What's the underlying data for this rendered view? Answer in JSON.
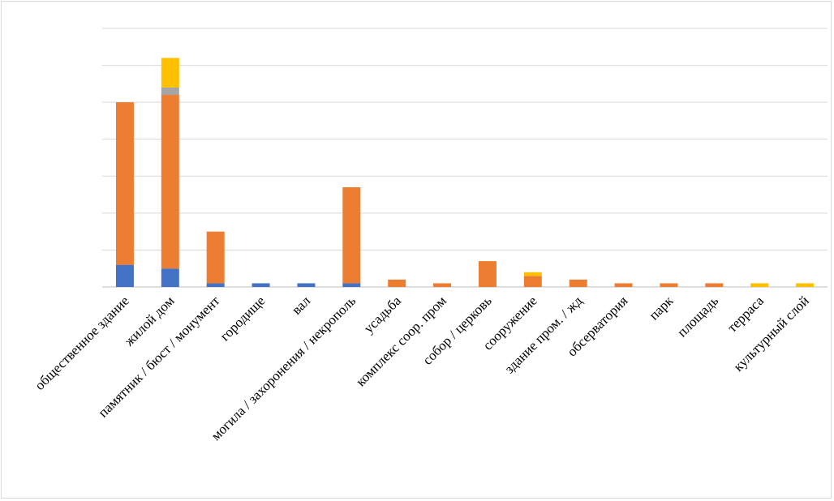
{
  "chart_data": {
    "type": "bar",
    "stacked": true,
    "categories": [
      "общественное здание",
      "жилой дом",
      "памятник / бюст / монумент",
      "городище",
      "вал",
      "могила / захоронения / некрополь",
      "усадьба",
      "комплекс соор. пром",
      "собор / церковь",
      "сооружение",
      "здание пром. / жд",
      "обсерватория",
      "парк",
      "площадь",
      "терраса",
      "культурный слой"
    ],
    "series": [
      {
        "color": "#4472c4",
        "values": [
          6,
          5,
          1,
          1,
          1,
          1,
          0,
          0,
          0,
          0,
          0,
          0,
          0,
          0,
          0,
          0
        ]
      },
      {
        "color": "#ed7d31",
        "values": [
          44,
          47,
          14,
          0,
          0,
          26,
          2,
          1,
          7,
          3,
          2,
          1,
          1,
          1,
          0,
          0
        ]
      },
      {
        "color": "#a5a5a5",
        "values": [
          0,
          2,
          0,
          0,
          0,
          0,
          0,
          0,
          0,
          0,
          0,
          0,
          0,
          0,
          0,
          0
        ]
      },
      {
        "color": "#ffc000",
        "values": [
          0,
          8,
          0,
          0,
          0,
          0,
          0,
          0,
          0,
          1,
          0,
          0,
          0,
          0,
          1,
          1
        ]
      }
    ],
    "ylim": [
      0,
      70
    ],
    "ytick_step": 10,
    "grid": true,
    "legend": "none",
    "title": "",
    "xlabel": "",
    "ylabel": ""
  }
}
